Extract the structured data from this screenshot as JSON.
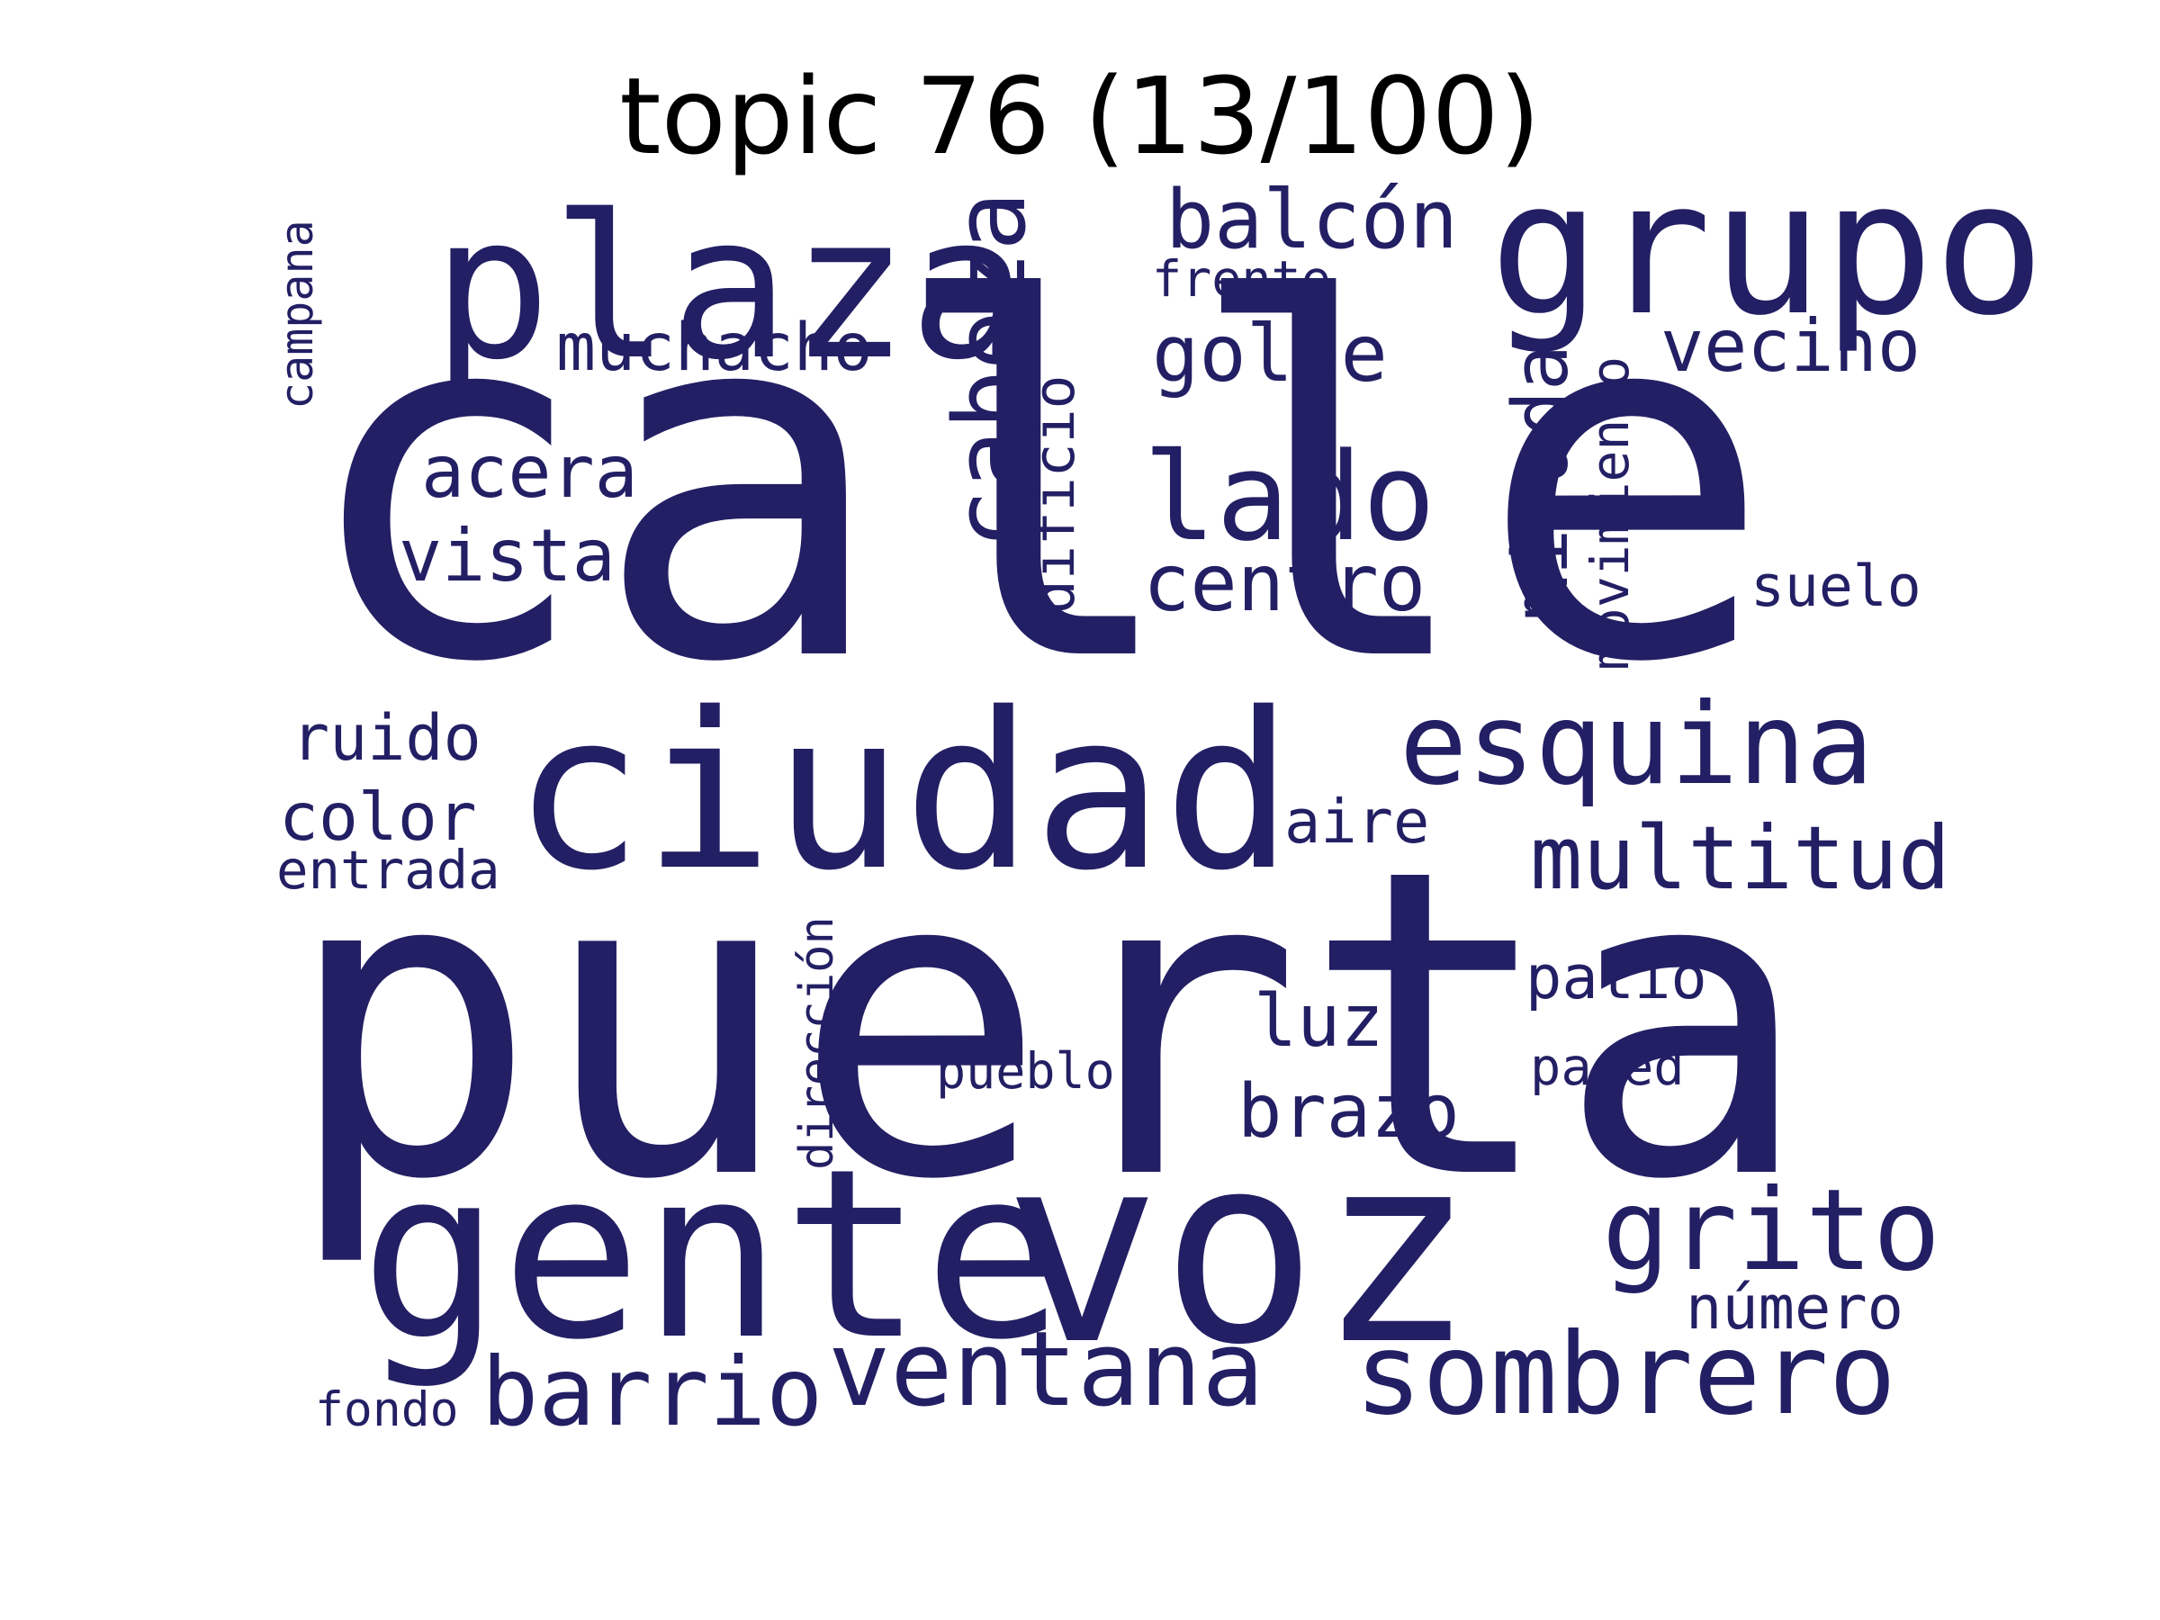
{
  "title": "topic 76 (13/100)",
  "colors": {
    "background": "#ffffff",
    "title": "#000000",
    "word": "#231f64"
  },
  "words": [
    {
      "text": "calle",
      "weight": 1.0,
      "orientation": "horizontal"
    },
    {
      "text": "puerta",
      "weight": 0.95,
      "orientation": "horizontal"
    },
    {
      "text": "voz",
      "weight": 0.6,
      "orientation": "horizontal"
    },
    {
      "text": "gente",
      "weight": 0.55,
      "orientation": "horizontal"
    },
    {
      "text": "ciudad",
      "weight": 0.5,
      "orientation": "horizontal"
    },
    {
      "text": "plaza",
      "weight": 0.45,
      "orientation": "horizontal"
    },
    {
      "text": "grupo",
      "weight": 0.45,
      "orientation": "horizontal"
    },
    {
      "text": "cabeza",
      "weight": 0.35,
      "orientation": "vertical"
    },
    {
      "text": "lado",
      "weight": 0.33,
      "orientation": "horizontal"
    },
    {
      "text": "esquina",
      "weight": 0.32,
      "orientation": "horizontal"
    },
    {
      "text": "sombrero",
      "weight": 0.3,
      "orientation": "horizontal"
    },
    {
      "text": "grito",
      "weight": 0.28,
      "orientation": "horizontal"
    },
    {
      "text": "ventana",
      "weight": 0.28,
      "orientation": "horizontal"
    },
    {
      "text": "barrio",
      "weight": 0.26,
      "orientation": "horizontal"
    },
    {
      "text": "mirada",
      "weight": 0.25,
      "orientation": "vertical"
    },
    {
      "text": "multitud",
      "weight": 0.24,
      "orientation": "horizontal"
    },
    {
      "text": "balcón",
      "weight": 0.22,
      "orientation": "horizontal"
    },
    {
      "text": "golpe",
      "weight": 0.2,
      "orientation": "horizontal"
    },
    {
      "text": "centro",
      "weight": 0.2,
      "orientation": "horizontal"
    },
    {
      "text": "brazo",
      "weight": 0.2,
      "orientation": "horizontal"
    },
    {
      "text": "vecino",
      "weight": 0.18,
      "orientation": "horizontal"
    },
    {
      "text": "acera",
      "weight": 0.18,
      "orientation": "horizontal"
    },
    {
      "text": "vista",
      "weight": 0.18,
      "orientation": "horizontal"
    },
    {
      "text": "luz",
      "weight": 0.18,
      "orientation": "horizontal"
    },
    {
      "text": "edificio",
      "weight": 0.17,
      "orientation": "vertical"
    },
    {
      "text": "muchacho",
      "weight": 0.16,
      "orientation": "horizontal"
    },
    {
      "text": "movimiento",
      "weight": 0.16,
      "orientation": "vertical"
    },
    {
      "text": "color",
      "weight": 0.16,
      "orientation": "horizontal"
    },
    {
      "text": "ruido",
      "weight": 0.16,
      "orientation": "horizontal"
    },
    {
      "text": "patio",
      "weight": 0.15,
      "orientation": "horizontal"
    },
    {
      "text": "número",
      "weight": 0.15,
      "orientation": "horizontal"
    },
    {
      "text": "aire",
      "weight": 0.15,
      "orientation": "horizontal"
    },
    {
      "text": "suelo",
      "weight": 0.15,
      "orientation": "horizontal"
    },
    {
      "text": "dirección",
      "weight": 0.14,
      "orientation": "vertical"
    },
    {
      "text": "entrada",
      "weight": 0.14,
      "orientation": "horizontal"
    },
    {
      "text": "pared",
      "weight": 0.12,
      "orientation": "horizontal"
    },
    {
      "text": "pueblo",
      "weight": 0.12,
      "orientation": "horizontal"
    },
    {
      "text": "frente",
      "weight": 0.12,
      "orientation": "horizontal"
    },
    {
      "text": "fondo",
      "weight": 0.12,
      "orientation": "horizontal"
    },
    {
      "text": "campana",
      "weight": 0.11,
      "orientation": "vertical"
    }
  ]
}
